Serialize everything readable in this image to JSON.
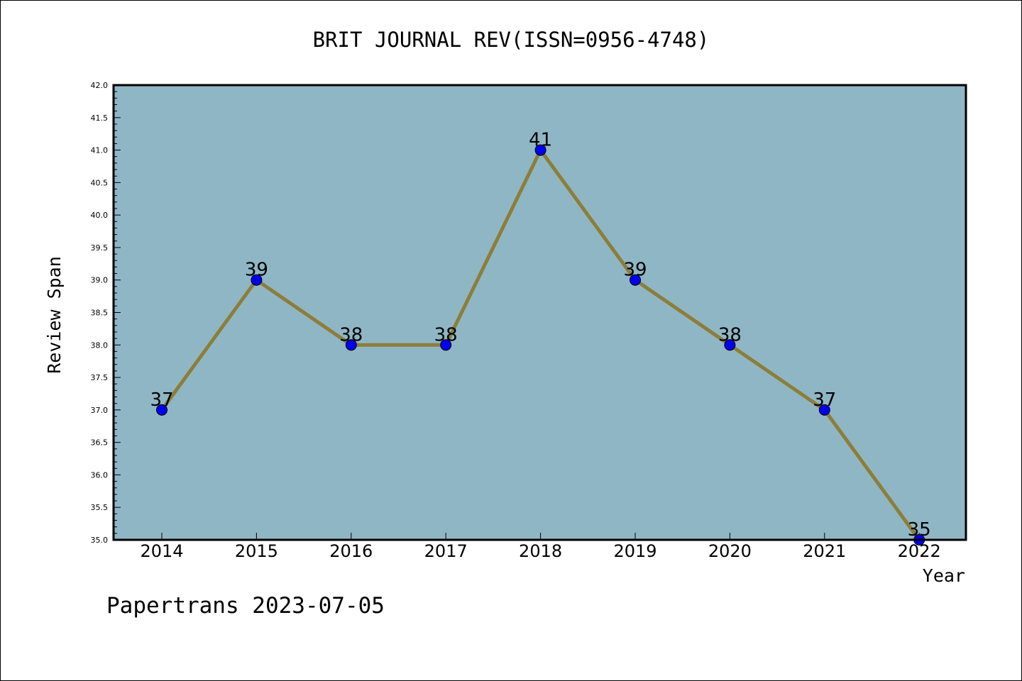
{
  "chart_data": {
    "type": "line",
    "title": "BRIT JOURNAL REV(ISSN=0956-4748)",
    "xlabel": "Year",
    "ylabel": "Review Span",
    "categories": [
      "2014",
      "2015",
      "2016",
      "2017",
      "2018",
      "2019",
      "2020",
      "2021",
      "2022"
    ],
    "series": [
      {
        "values": [
          37,
          39,
          38,
          38,
          41,
          39,
          38,
          37,
          35
        ]
      }
    ],
    "data_labels": [
      "37",
      "39",
      "38",
      "38",
      "41",
      "39",
      "38",
      "37",
      "35"
    ],
    "ylim": [
      35.0,
      42.0
    ],
    "y_ticks": [
      "35.0",
      "35.5",
      "36.0",
      "36.5",
      "37.0",
      "37.5",
      "38.0",
      "38.5",
      "39.0",
      "39.5",
      "40.0",
      "40.5",
      "41.0",
      "41.5",
      "42.0"
    ],
    "grid": false,
    "legend": "none",
    "colors": {
      "plot_background": "#8fb6c4",
      "line": "#8c7e3a",
      "marker": "#0000ee"
    }
  },
  "footer": {
    "text": "Papertrans 2023-07-05"
  }
}
